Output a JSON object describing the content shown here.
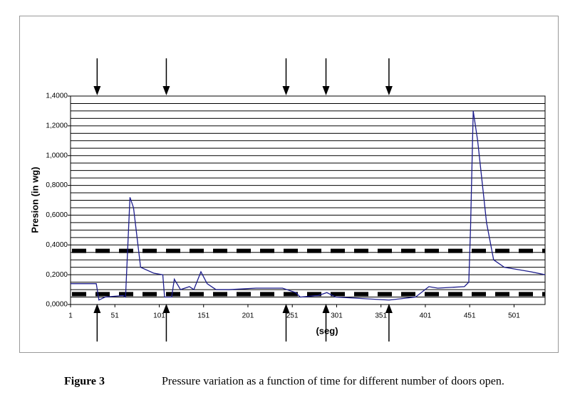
{
  "chart_data": {
    "type": "line",
    "ylabel": "Presion (in wg)",
    "xlabel": "(seg)",
    "figure_label": "Figure 3",
    "caption": "Pressure variation as a function of time for different number of doors open.",
    "xlim": [
      1,
      536
    ],
    "xticks": [
      1,
      51,
      101,
      151,
      201,
      251,
      301,
      351,
      401,
      451,
      501
    ],
    "ylim": [
      0,
      1.4
    ],
    "yticks": [
      {
        "value": 0,
        "label": "0,0000"
      },
      {
        "value": 0.2,
        "label": "0,2000"
      },
      {
        "value": 0.4,
        "label": "0,4000"
      },
      {
        "value": 0.6,
        "label": "0,6000"
      },
      {
        "value": 0.8,
        "label": "0,8000"
      },
      {
        "value": 1.0,
        "label": "1,0000"
      },
      {
        "value": 1.2,
        "label": "1,2000"
      },
      {
        "value": 1.4,
        "label": "1,4000"
      }
    ],
    "ygrid": [
      0.05,
      0.1,
      0.15,
      0.25,
      0.3,
      0.35,
      0.45,
      0.5,
      0.55,
      0.65,
      0.7,
      0.75,
      0.85,
      0.9,
      0.95,
      1.05,
      1.1,
      1.15,
      1.25,
      1.3,
      1.35
    ],
    "thresholds": [
      0.36,
      0.07
    ],
    "arrows_x": [
      31,
      109,
      244,
      289,
      360
    ],
    "x": [
      1,
      30,
      33,
      40,
      60,
      63,
      68,
      72,
      80,
      95,
      105,
      107,
      115,
      118,
      125,
      135,
      140,
      148,
      155,
      165,
      180,
      210,
      240,
      255,
      260,
      280,
      290,
      300,
      330,
      360,
      390,
      405,
      415,
      445,
      450,
      452,
      455,
      460,
      470,
      478,
      490,
      520,
      536
    ],
    "series": [
      {
        "color": "#1c1c8c",
        "values": [
          0.14,
          0.14,
          0.03,
          0.05,
          0.06,
          0.05,
          0.72,
          0.65,
          0.25,
          0.21,
          0.2,
          0.05,
          0.05,
          0.17,
          0.1,
          0.12,
          0.1,
          0.22,
          0.14,
          0.1,
          0.1,
          0.11,
          0.11,
          0.08,
          0.05,
          0.06,
          0.08,
          0.05,
          0.04,
          0.03,
          0.05,
          0.12,
          0.11,
          0.12,
          0.15,
          0.52,
          1.3,
          1.1,
          0.55,
          0.3,
          0.25,
          0.22,
          0.2
        ]
      }
    ]
  }
}
